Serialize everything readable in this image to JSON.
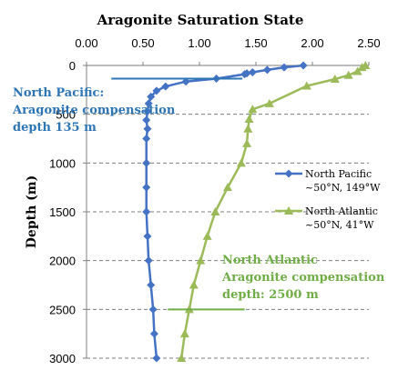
{
  "chart_data": {
    "type": "line",
    "title": "Aragonite Saturation State",
    "ylabel": "Depth (m)",
    "xlim": [
      0,
      2.5
    ],
    "ylim": [
      3000,
      0
    ],
    "x_ticks": [
      "0.00",
      "0.50",
      "1.00",
      "1.50",
      "2.00",
      "2.50"
    ],
    "x_tick_values": [
      0,
      0.5,
      1.0,
      1.5,
      2.0,
      2.5
    ],
    "y_ticks": [
      "0",
      "500",
      "1000",
      "1500",
      "2000",
      "2500",
      "3000"
    ],
    "y_tick_values": [
      0,
      500,
      1000,
      1500,
      2000,
      2500,
      3000
    ],
    "x_axis_position": "top",
    "grid": "horizontal dashed",
    "legend_position": "right",
    "series": [
      {
        "name": "North Pacific",
        "name_line2": "~50°N, 149°W",
        "color": "#4472c4",
        "marker": "diamond",
        "points": [
          [
            1.92,
            0
          ],
          [
            1.75,
            20
          ],
          [
            1.6,
            45
          ],
          [
            1.47,
            70
          ],
          [
            1.42,
            80
          ],
          [
            1.4,
            90
          ],
          [
            1.15,
            135
          ],
          [
            0.88,
            165
          ],
          [
            0.7,
            215
          ],
          [
            0.62,
            260
          ],
          [
            0.57,
            320
          ],
          [
            0.55,
            390
          ],
          [
            0.54,
            470
          ],
          [
            0.53,
            560
          ],
          [
            0.54,
            650
          ],
          [
            0.53,
            750
          ],
          [
            0.53,
            1000
          ],
          [
            0.53,
            1250
          ],
          [
            0.53,
            1500
          ],
          [
            0.54,
            1750
          ],
          [
            0.55,
            2000
          ],
          [
            0.57,
            2250
          ],
          [
            0.59,
            2500
          ],
          [
            0.6,
            2750
          ],
          [
            0.62,
            3000
          ]
        ]
      },
      {
        "name": "North Atlantic",
        "name_line2": "~50°N, 41°W",
        "color": "#9bbb59",
        "marker": "triangle",
        "points": [
          [
            2.47,
            0
          ],
          [
            2.44,
            20
          ],
          [
            2.4,
            60
          ],
          [
            2.32,
            100
          ],
          [
            2.2,
            140
          ],
          [
            1.95,
            210
          ],
          [
            1.62,
            390
          ],
          [
            1.47,
            450
          ],
          [
            1.44,
            550
          ],
          [
            1.43,
            650
          ],
          [
            1.42,
            800
          ],
          [
            1.37,
            1000
          ],
          [
            1.25,
            1250
          ],
          [
            1.14,
            1500
          ],
          [
            1.07,
            1750
          ],
          [
            1.01,
            2000
          ],
          [
            0.95,
            2250
          ],
          [
            0.91,
            2500
          ],
          [
            0.87,
            2750
          ],
          [
            0.84,
            3000
          ]
        ]
      }
    ],
    "annotations": [
      {
        "lines": [
          "North Pacific:",
          "Aragonite compensation",
          "depth 135 m"
        ],
        "color": "#2e75b6",
        "depth": 135,
        "x_from": 0.22,
        "x_to": 1.38
      },
      {
        "lines": [
          "North Atlantic",
          "Aragonite compensation",
          "depth: 2500 m"
        ],
        "color": "#70ad47",
        "depth": 2500,
        "x_from": 0.72,
        "x_to": 1.4
      }
    ]
  }
}
